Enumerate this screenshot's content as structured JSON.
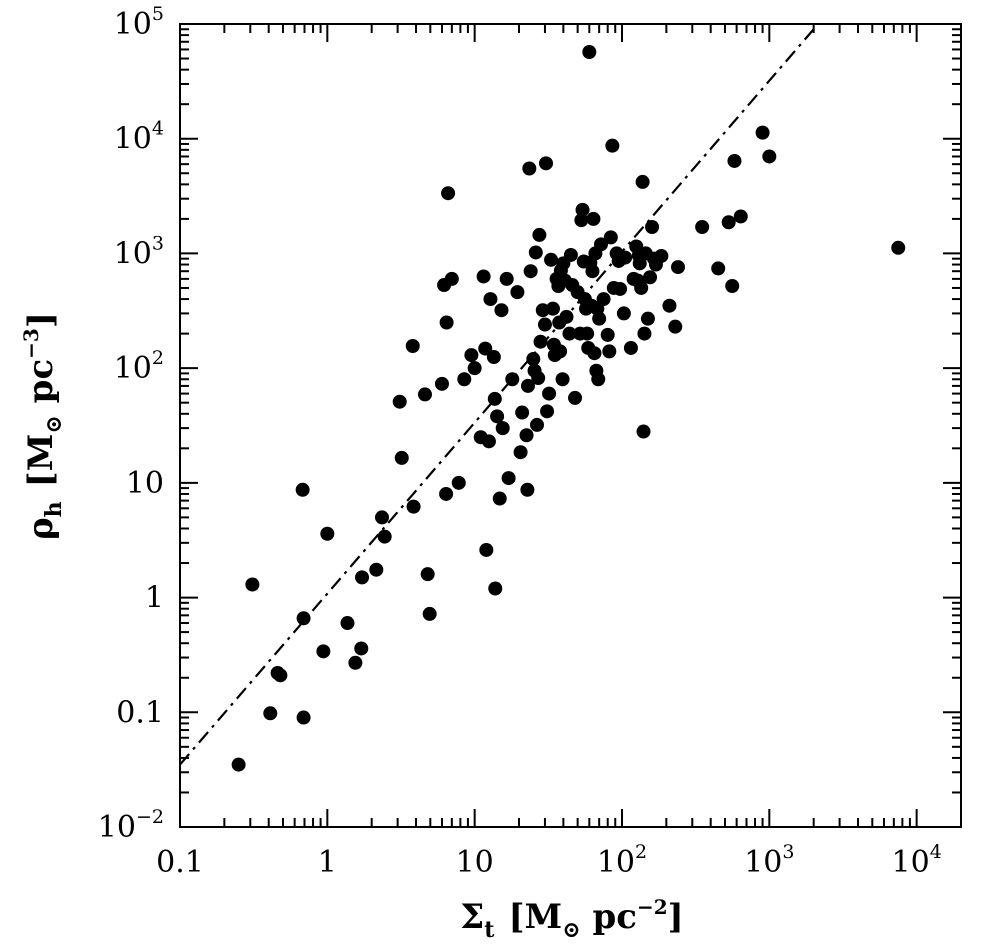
{
  "chart_data": {
    "type": "scatter",
    "title": "",
    "xlabel": {
      "symbol": "Σ",
      "subscript": "t",
      "unit_open": "[M",
      "unit_sub": "⊙",
      "unit_mid": " pc",
      "unit_sup": "−2",
      "unit_close": "]"
    },
    "ylabel": {
      "symbol": "ρ",
      "subscript": "h",
      "unit_open": "[M",
      "unit_sub": "⊙",
      "unit_mid": " pc",
      "unit_sup": "−3",
      "unit_close": "]"
    },
    "xscale": "log",
    "yscale": "log",
    "xlim": [
      0.1,
      20000
    ],
    "ylim": [
      0.01,
      100000
    ],
    "grid": false,
    "legend": "none",
    "x_ticks": [
      {
        "value": 0.1,
        "base": "0.1",
        "exp": ""
      },
      {
        "value": 1,
        "base": "1",
        "exp": ""
      },
      {
        "value": 10,
        "base": "10",
        "exp": ""
      },
      {
        "value": 100,
        "base": "10",
        "exp": "2"
      },
      {
        "value": 1000,
        "base": "10",
        "exp": "3"
      },
      {
        "value": 10000,
        "base": "10",
        "exp": "4"
      }
    ],
    "y_ticks": [
      {
        "value": 0.01,
        "base": "10",
        "exp": "−2"
      },
      {
        "value": 0.1,
        "base": "0.1",
        "exp": ""
      },
      {
        "value": 1,
        "base": "1",
        "exp": ""
      },
      {
        "value": 10,
        "base": "10",
        "exp": ""
      },
      {
        "value": 100,
        "base": "10",
        "exp": "2"
      },
      {
        "value": 1000,
        "base": "10",
        "exp": "3"
      },
      {
        "value": 10000,
        "base": "10",
        "exp": "4"
      },
      {
        "value": 100000,
        "base": "10",
        "exp": "5"
      }
    ],
    "reference_line": {
      "style": "dash-dot",
      "x": [
        0.1,
        2000
      ],
      "y": [
        0.035,
        90000
      ]
    },
    "series": [
      {
        "marker": "filled-circle",
        "color": "#000000",
        "points": [
          [
            0.25,
            0.035
          ],
          [
            0.31,
            1.3
          ],
          [
            0.41,
            0.098
          ],
          [
            0.46,
            0.22
          ],
          [
            0.48,
            0.21
          ],
          [
            0.68,
            8.7
          ],
          [
            0.69,
            0.66
          ],
          [
            0.69,
            0.09
          ],
          [
            0.94,
            0.34
          ],
          [
            1.0,
            3.6
          ],
          [
            1.37,
            0.6
          ],
          [
            1.55,
            0.27
          ],
          [
            1.7,
            0.36
          ],
          [
            1.72,
            1.5
          ],
          [
            2.15,
            1.75
          ],
          [
            2.35,
            5.0
          ],
          [
            2.45,
            3.4
          ],
          [
            3.1,
            51
          ],
          [
            3.2,
            16.5
          ],
          [
            3.8,
            156
          ],
          [
            3.85,
            6.2
          ],
          [
            4.6,
            59
          ],
          [
            4.8,
            1.6
          ],
          [
            4.95,
            0.72
          ],
          [
            6.0,
            73
          ],
          [
            6.2,
            530
          ],
          [
            6.4,
            8.0
          ],
          [
            6.45,
            250
          ],
          [
            6.6,
            3350
          ],
          [
            7.0,
            600
          ],
          [
            7.8,
            10
          ],
          [
            8.5,
            80
          ],
          [
            9.5,
            130
          ],
          [
            10,
            100
          ],
          [
            11,
            25
          ],
          [
            11.5,
            630
          ],
          [
            11.8,
            148
          ],
          [
            12,
            2.6
          ],
          [
            12.5,
            23
          ],
          [
            12.8,
            400
          ],
          [
            13.5,
            125
          ],
          [
            13.7,
            54
          ],
          [
            13.8,
            1.2
          ],
          [
            14.2,
            38
          ],
          [
            14.8,
            7.3
          ],
          [
            15.2,
            320
          ],
          [
            15.5,
            30
          ],
          [
            16.5,
            600
          ],
          [
            17,
            11
          ],
          [
            18,
            80
          ],
          [
            19.5,
            460
          ],
          [
            20.5,
            18.5
          ],
          [
            21,
            41
          ],
          [
            22.5,
            26
          ],
          [
            22.8,
            8.7
          ],
          [
            23,
            70
          ],
          [
            23.5,
            5500
          ],
          [
            24,
            700
          ],
          [
            25,
            120
          ],
          [
            25.5,
            95
          ],
          [
            26,
            1020
          ],
          [
            26.5,
            32
          ],
          [
            27,
            82
          ],
          [
            27.5,
            1450
          ],
          [
            28,
            170
          ],
          [
            29,
            320
          ],
          [
            30,
            240
          ],
          [
            30.5,
            6100
          ],
          [
            31,
            42
          ],
          [
            32,
            60
          ],
          [
            33,
            880
          ],
          [
            34,
            330
          ],
          [
            34.5,
            160
          ],
          [
            35,
            130
          ],
          [
            36,
            600
          ],
          [
            37,
            520
          ],
          [
            37.5,
            250
          ],
          [
            38,
            140
          ],
          [
            38.5,
            710
          ],
          [
            39.5,
            80
          ],
          [
            40,
            820
          ],
          [
            41,
            580
          ],
          [
            42,
            280
          ],
          [
            44,
            200
          ],
          [
            45,
            970
          ],
          [
            46,
            530
          ],
          [
            48,
            55
          ],
          [
            50,
            460
          ],
          [
            52,
            200
          ],
          [
            53,
            1950
          ],
          [
            54,
            2400
          ],
          [
            55,
            850
          ],
          [
            56,
            400
          ],
          [
            57,
            330
          ],
          [
            58,
            200
          ],
          [
            59,
            150
          ],
          [
            60,
            57000
          ],
          [
            61,
            830
          ],
          [
            62,
            350
          ],
          [
            63,
            700
          ],
          [
            64,
            2000
          ],
          [
            65,
            135
          ],
          [
            66,
            1000
          ],
          [
            67,
            95
          ],
          [
            68,
            330
          ],
          [
            69,
            80
          ],
          [
            70,
            270
          ],
          [
            72,
            1200
          ],
          [
            75,
            400
          ],
          [
            80,
            195
          ],
          [
            82,
            140
          ],
          [
            84,
            1380
          ],
          [
            86,
            8700
          ],
          [
            88,
            500
          ],
          [
            92,
            1000
          ],
          [
            95,
            860
          ],
          [
            97,
            490
          ],
          [
            103,
            300
          ],
          [
            105,
            920
          ],
          [
            115,
            150
          ],
          [
            120,
            600
          ],
          [
            125,
            1150
          ],
          [
            128,
            580
          ],
          [
            130,
            960
          ],
          [
            132,
            820
          ],
          [
            135,
            500
          ],
          [
            138,
            4200
          ],
          [
            140,
            28
          ],
          [
            142,
            200
          ],
          [
            145,
            1000
          ],
          [
            150,
            270
          ],
          [
            155,
            620
          ],
          [
            160,
            1700
          ],
          [
            165,
            900
          ],
          [
            170,
            800
          ],
          [
            185,
            950
          ],
          [
            210,
            350
          ],
          [
            230,
            230
          ],
          [
            240,
            760
          ],
          [
            350,
            1700
          ],
          [
            450,
            740
          ],
          [
            530,
            1870
          ],
          [
            560,
            520
          ],
          [
            580,
            6400
          ],
          [
            640,
            2100
          ],
          [
            900,
            11300
          ],
          [
            1000,
            7000
          ],
          [
            7500,
            1120
          ]
        ]
      }
    ]
  }
}
